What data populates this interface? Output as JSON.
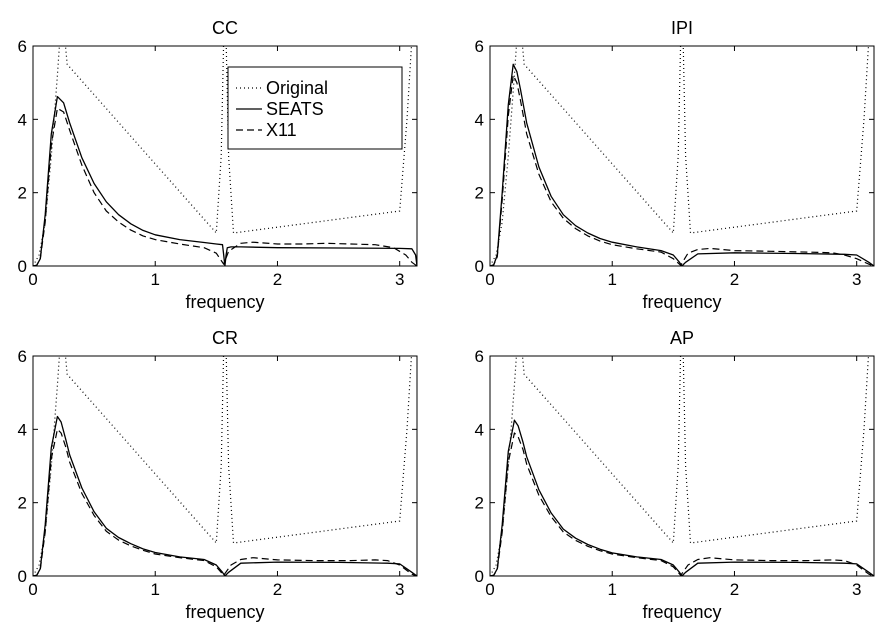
{
  "figure": {
    "xlabel": "frequency",
    "legend": {
      "placement": "top-right of first panel",
      "entries": [
        "Original",
        "SEATS",
        "X11"
      ]
    }
  },
  "chart_data": [
    {
      "type": "line",
      "title": "CC",
      "xlabel": "frequency",
      "ylabel": "",
      "xlim": [
        0,
        3.1416
      ],
      "ylim": [
        0,
        6
      ],
      "xticks": [
        "0",
        "1",
        "2",
        "3"
      ],
      "yticks": [
        "0",
        "2",
        "4",
        "6"
      ],
      "grid": false,
      "series": [
        {
          "name": "Original",
          "style": "dotted",
          "x": [
            0.0,
            0.05,
            0.1,
            0.15,
            0.2,
            0.22,
            0.24,
            0.26,
            0.28,
            1.5,
            1.54,
            1.56,
            1.58,
            1.6,
            1.64,
            3.0,
            3.06,
            3.1,
            3.1416
          ],
          "y": [
            0.0,
            0.3,
            1.2,
            3.0,
            5.2,
            6.2,
            6.2,
            6.2,
            5.5,
            0.9,
            3.0,
            6.2,
            6.2,
            3.0,
            0.9,
            1.5,
            4.0,
            6.2,
            6.2
          ]
        },
        {
          "name": "SEATS",
          "style": "solid",
          "x": [
            0.0,
            0.03,
            0.06,
            0.1,
            0.15,
            0.2,
            0.25,
            0.3,
            0.4,
            0.5,
            0.6,
            0.7,
            0.8,
            0.9,
            1.0,
            1.2,
            1.4,
            1.5,
            1.55,
            1.56,
            1.57,
            1.58,
            1.59,
            1.62,
            1.7,
            2.0,
            2.5,
            3.0,
            3.1,
            3.13,
            3.1416
          ],
          "y": [
            0.0,
            0.02,
            0.2,
            1.4,
            3.6,
            4.62,
            4.45,
            3.9,
            2.95,
            2.25,
            1.75,
            1.4,
            1.15,
            0.97,
            0.85,
            0.72,
            0.64,
            0.6,
            0.58,
            0.3,
            0.0,
            0.3,
            0.5,
            0.52,
            0.52,
            0.5,
            0.49,
            0.48,
            0.47,
            0.3,
            0.0
          ]
        },
        {
          "name": "X11",
          "style": "dashed",
          "x": [
            0.0,
            0.03,
            0.06,
            0.1,
            0.15,
            0.2,
            0.25,
            0.3,
            0.4,
            0.5,
            0.6,
            0.7,
            0.8,
            0.9,
            1.0,
            1.2,
            1.4,
            1.5,
            1.56,
            1.6,
            1.7,
            1.8,
            2.0,
            2.2,
            2.4,
            2.6,
            2.8,
            2.95,
            3.05,
            3.1,
            3.1416
          ],
          "y": [
            0.0,
            0.02,
            0.2,
            1.2,
            3.3,
            4.3,
            4.2,
            3.7,
            2.75,
            2.0,
            1.5,
            1.2,
            0.98,
            0.82,
            0.72,
            0.6,
            0.5,
            0.35,
            0.05,
            0.4,
            0.62,
            0.65,
            0.6,
            0.6,
            0.62,
            0.6,
            0.58,
            0.5,
            0.3,
            0.1,
            0.0
          ]
        }
      ]
    },
    {
      "type": "line",
      "title": "IPI",
      "xlabel": "frequency",
      "ylabel": "",
      "xlim": [
        0,
        3.1416
      ],
      "ylim": [
        0,
        6
      ],
      "xticks": [
        "0",
        "1",
        "2",
        "3"
      ],
      "yticks": [
        "0",
        "2",
        "4",
        "6"
      ],
      "grid": false,
      "series": [
        {
          "name": "Original",
          "style": "dotted",
          "x": [
            0.0,
            0.05,
            0.1,
            0.15,
            0.2,
            0.22,
            0.24,
            0.26,
            0.28,
            1.5,
            1.54,
            1.56,
            1.58,
            1.6,
            1.64,
            3.0,
            3.06,
            3.1,
            3.1416
          ],
          "y": [
            0.0,
            0.3,
            1.2,
            3.0,
            5.2,
            6.2,
            6.2,
            6.2,
            5.5,
            0.9,
            3.0,
            6.2,
            6.2,
            3.0,
            0.9,
            1.5,
            4.0,
            6.2,
            6.2
          ]
        },
        {
          "name": "SEATS",
          "style": "solid",
          "x": [
            0.0,
            0.03,
            0.06,
            0.1,
            0.15,
            0.19,
            0.22,
            0.25,
            0.3,
            0.4,
            0.5,
            0.6,
            0.7,
            0.8,
            0.9,
            1.0,
            1.2,
            1.4,
            1.5,
            1.55,
            1.57,
            1.6,
            1.7,
            2.0,
            2.5,
            2.9,
            3.0,
            3.1,
            3.1416
          ],
          "y": [
            0.0,
            0.03,
            0.3,
            2.0,
            4.4,
            5.5,
            5.3,
            4.8,
            3.9,
            2.7,
            1.9,
            1.4,
            1.1,
            0.9,
            0.75,
            0.65,
            0.52,
            0.42,
            0.3,
            0.1,
            0.0,
            0.1,
            0.33,
            0.36,
            0.34,
            0.32,
            0.3,
            0.1,
            0.0
          ]
        },
        {
          "name": "X11",
          "style": "dashed",
          "x": [
            0.0,
            0.03,
            0.06,
            0.1,
            0.15,
            0.19,
            0.22,
            0.25,
            0.3,
            0.4,
            0.5,
            0.6,
            0.7,
            0.8,
            0.9,
            1.0,
            1.2,
            1.4,
            1.5,
            1.56,
            1.62,
            1.7,
            1.8,
            2.0,
            2.3,
            2.6,
            2.8,
            2.9,
            3.0,
            3.1,
            3.1416
          ],
          "y": [
            0.0,
            0.03,
            0.25,
            1.8,
            4.1,
            5.2,
            5.0,
            4.5,
            3.6,
            2.5,
            1.75,
            1.3,
            1.02,
            0.82,
            0.68,
            0.58,
            0.47,
            0.38,
            0.2,
            0.02,
            0.35,
            0.45,
            0.48,
            0.42,
            0.4,
            0.38,
            0.36,
            0.3,
            0.2,
            0.05,
            0.0
          ]
        }
      ]
    },
    {
      "type": "line",
      "title": "CR",
      "xlabel": "frequency",
      "ylabel": "",
      "xlim": [
        0,
        3.1416
      ],
      "ylim": [
        0,
        6
      ],
      "xticks": [
        "0",
        "1",
        "2",
        "3"
      ],
      "yticks": [
        "0",
        "2",
        "4",
        "6"
      ],
      "grid": false,
      "series": [
        {
          "name": "Original",
          "style": "dotted",
          "x": [
            0.0,
            0.05,
            0.1,
            0.15,
            0.2,
            0.22,
            0.24,
            0.26,
            0.28,
            1.5,
            1.54,
            1.56,
            1.58,
            1.6,
            1.64,
            3.0,
            3.06,
            3.1,
            3.1416
          ],
          "y": [
            0.0,
            0.3,
            1.2,
            3.0,
            5.2,
            6.2,
            6.2,
            6.2,
            5.5,
            0.9,
            3.0,
            6.2,
            6.2,
            3.0,
            0.9,
            1.5,
            4.0,
            6.2,
            6.2
          ]
        },
        {
          "name": "SEATS",
          "style": "solid",
          "x": [
            0.0,
            0.03,
            0.06,
            0.1,
            0.15,
            0.2,
            0.23,
            0.27,
            0.3,
            0.4,
            0.5,
            0.6,
            0.7,
            0.8,
            0.9,
            1.0,
            1.2,
            1.4,
            1.5,
            1.55,
            1.57,
            1.6,
            1.7,
            2.0,
            2.5,
            2.9,
            3.0,
            3.1,
            3.1416
          ],
          "y": [
            0.0,
            0.02,
            0.2,
            1.4,
            3.5,
            4.35,
            4.2,
            3.7,
            3.3,
            2.4,
            1.75,
            1.3,
            1.05,
            0.88,
            0.74,
            0.64,
            0.52,
            0.45,
            0.3,
            0.1,
            0.0,
            0.1,
            0.35,
            0.38,
            0.37,
            0.35,
            0.33,
            0.1,
            0.0
          ]
        },
        {
          "name": "X11",
          "style": "dashed",
          "x": [
            0.0,
            0.03,
            0.06,
            0.1,
            0.15,
            0.2,
            0.23,
            0.27,
            0.3,
            0.4,
            0.5,
            0.6,
            0.7,
            0.8,
            0.9,
            1.0,
            1.2,
            1.4,
            1.5,
            1.56,
            1.62,
            1.7,
            1.8,
            2.0,
            2.3,
            2.6,
            2.8,
            2.9,
            3.0,
            3.1,
            3.1416
          ],
          "y": [
            0.0,
            0.02,
            0.18,
            1.2,
            3.2,
            4.0,
            3.9,
            3.5,
            3.1,
            2.25,
            1.65,
            1.22,
            0.98,
            0.82,
            0.7,
            0.6,
            0.5,
            0.42,
            0.25,
            0.02,
            0.3,
            0.45,
            0.5,
            0.44,
            0.42,
            0.42,
            0.44,
            0.42,
            0.3,
            0.05,
            0.0
          ]
        }
      ]
    },
    {
      "type": "line",
      "title": "AP",
      "xlabel": "frequency",
      "ylabel": "",
      "xlim": [
        0,
        3.1416
      ],
      "ylim": [
        0,
        6
      ],
      "xticks": [
        "0",
        "1",
        "2",
        "3"
      ],
      "yticks": [
        "0",
        "2",
        "4",
        "6"
      ],
      "grid": false,
      "series": [
        {
          "name": "Original",
          "style": "dotted",
          "x": [
            0.0,
            0.05,
            0.1,
            0.15,
            0.2,
            0.22,
            0.24,
            0.26,
            0.28,
            1.5,
            1.54,
            1.56,
            1.58,
            1.6,
            1.64,
            3.0,
            3.06,
            3.1,
            3.1416
          ],
          "y": [
            0.0,
            0.3,
            1.2,
            3.0,
            5.2,
            6.2,
            6.2,
            6.2,
            5.5,
            0.9,
            3.0,
            6.2,
            6.2,
            3.0,
            0.9,
            1.5,
            4.0,
            6.2,
            6.2
          ]
        },
        {
          "name": "SEATS",
          "style": "solid",
          "x": [
            0.0,
            0.03,
            0.06,
            0.1,
            0.15,
            0.2,
            0.23,
            0.27,
            0.3,
            0.4,
            0.5,
            0.6,
            0.7,
            0.8,
            0.9,
            1.0,
            1.2,
            1.4,
            1.5,
            1.55,
            1.57,
            1.6,
            1.7,
            2.0,
            2.5,
            2.9,
            3.0,
            3.1,
            3.1416
          ],
          "y": [
            0.0,
            0.02,
            0.2,
            1.4,
            3.4,
            4.25,
            4.1,
            3.65,
            3.25,
            2.35,
            1.72,
            1.28,
            1.03,
            0.86,
            0.73,
            0.63,
            0.52,
            0.45,
            0.3,
            0.1,
            0.0,
            0.1,
            0.35,
            0.38,
            0.37,
            0.35,
            0.33,
            0.1,
            0.0
          ]
        },
        {
          "name": "X11",
          "style": "dashed",
          "x": [
            0.0,
            0.03,
            0.06,
            0.1,
            0.15,
            0.2,
            0.23,
            0.27,
            0.3,
            0.4,
            0.5,
            0.6,
            0.7,
            0.8,
            0.9,
            1.0,
            1.2,
            1.4,
            1.5,
            1.56,
            1.62,
            1.7,
            1.8,
            2.0,
            2.3,
            2.6,
            2.8,
            2.9,
            3.0,
            3.1,
            3.1416
          ],
          "y": [
            0.0,
            0.02,
            0.18,
            1.2,
            3.1,
            3.9,
            3.8,
            3.45,
            3.05,
            2.2,
            1.62,
            1.2,
            0.97,
            0.81,
            0.69,
            0.6,
            0.5,
            0.42,
            0.25,
            0.02,
            0.3,
            0.45,
            0.5,
            0.44,
            0.42,
            0.42,
            0.44,
            0.42,
            0.3,
            0.05,
            0.0
          ]
        }
      ]
    }
  ]
}
